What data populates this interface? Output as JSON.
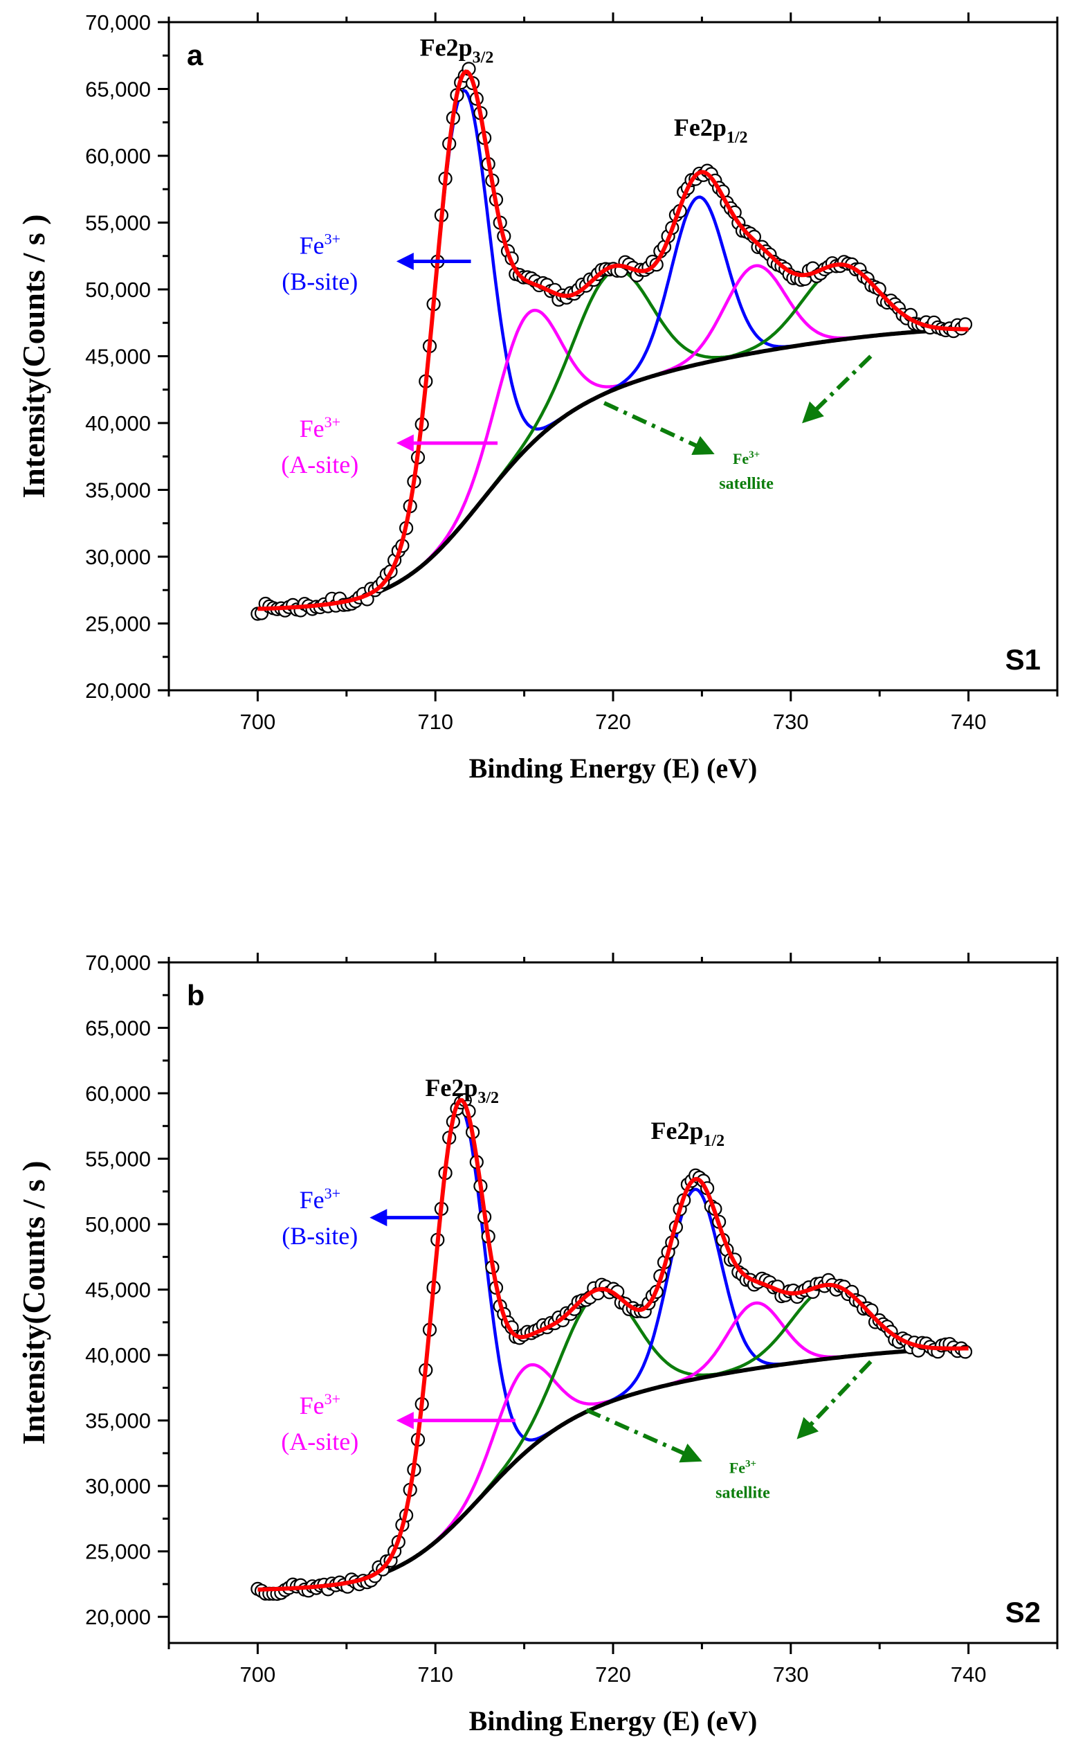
{
  "figure": {
    "description_free": true,
    "colors": {
      "data": "#000000",
      "envelope": "#ff0000",
      "b_site": "#0000ff",
      "a_site": "#ff00ff",
      "satellite": "#0b7d0b",
      "background": "#000000"
    }
  },
  "chart_data": [
    {
      "type": "line",
      "panel_label": "a",
      "sample_label": "S1",
      "xlabel": "Binding Energy (E) (eV)",
      "ylabel": "Intensity(Counts / s )",
      "xlim": [
        695,
        745
      ],
      "ylim": [
        20000,
        70000
      ],
      "x_ticks": [
        700,
        710,
        720,
        730,
        740
      ],
      "x_tick_labels": [
        "700",
        "710",
        "720",
        "730",
        "740"
      ],
      "y_ticks": [
        20000,
        25000,
        30000,
        35000,
        40000,
        45000,
        50000,
        55000,
        60000,
        65000,
        70000
      ],
      "y_tick_labels": [
        "20,000",
        "25,000",
        "30,000",
        "35,000",
        "40,000",
        "45,000",
        "50,000",
        "55,000",
        "60,000",
        "65,000",
        "70,000"
      ],
      "peak_labels": [
        {
          "main": "Fe2p",
          "sub": "3/2",
          "x": 711.2,
          "y": 67500
        },
        {
          "main": "Fe2p",
          "sub": "1/2",
          "x": 725.5,
          "y": 61500
        }
      ],
      "annotations": [
        {
          "id": "b_site",
          "ion": "Fe",
          "charge": "3+",
          "site": "(B-site)",
          "color": "b_site",
          "arrow_from": [
            712,
            52100
          ],
          "arrow_to": [
            708,
            52100
          ],
          "text_x": 703.5,
          "text_y": 50700
        },
        {
          "id": "a_site",
          "ion": "Fe",
          "charge": "3+",
          "site": "(A-site)",
          "color": "a_site",
          "arrow_from": [
            713.5,
            38500
          ],
          "arrow_to": [
            708,
            38500
          ],
          "text_x": 703.5,
          "text_y": 37000
        },
        {
          "id": "satellite",
          "ion": "Fe",
          "charge": "3+",
          "site": "satellite",
          "color": "satellite"
        }
      ],
      "satellite_arrows": [
        {
          "from": [
            719.5,
            41500
          ],
          "to": [
            725.5,
            37800
          ]
        },
        {
          "from": [
            734.5,
            45000
          ],
          "to": [
            730.8,
            40200
          ]
        }
      ],
      "satellite_text": {
        "x": 727.5,
        "y": 35500
      },
      "background": {
        "start": 26000,
        "end": 47000,
        "knee_center": 712,
        "knee_width": 2.5,
        "linear_slope": 170
      },
      "peaks": [
        {
          "name": "Fe3+ (B-site) 2p3/2",
          "color": "b_site",
          "center": 711.5,
          "amplitude": 32400,
          "fwhm": 3.6
        },
        {
          "name": "Fe3+ (A-site) 2p3/2",
          "color": "a_site",
          "center": 715.2,
          "amplitude": 10000,
          "fwhm": 4.2
        },
        {
          "name": "Fe3+ satellite 2p3/2",
          "color": "satellite",
          "center": 720.0,
          "amplitude": 8900,
          "fwhm": 5.0
        },
        {
          "name": "Fe3+ (B-site) 2p1/2",
          "color": "b_site",
          "center": 724.8,
          "amplitude": 12500,
          "fwhm": 3.6
        },
        {
          "name": "Fe3+ (A-site) 2p1/2",
          "color": "a_site",
          "center": 728.0,
          "amplitude": 6500,
          "fwhm": 4.0
        },
        {
          "name": "Fe3+ satellite 2p1/2",
          "color": "satellite",
          "center": 732.8,
          "amplitude": 5500,
          "fwhm": 5.0
        }
      ],
      "noise": {
        "amplitude": 380,
        "seed": 7
      }
    },
    {
      "type": "line",
      "panel_label": "b",
      "sample_label": "S2",
      "xlabel": "Binding Energy (E) (eV)",
      "ylabel": "Intensity(Counts / s )",
      "xlim": [
        695,
        745
      ],
      "ylim": [
        18000,
        70000
      ],
      "x_ticks": [
        700,
        710,
        720,
        730,
        740
      ],
      "x_tick_labels": [
        "700",
        "710",
        "720",
        "730",
        "740"
      ],
      "y_ticks": [
        20000,
        25000,
        30000,
        35000,
        40000,
        45000,
        50000,
        55000,
        60000,
        65000,
        70000
      ],
      "y_tick_labels": [
        "20,000",
        "25,000",
        "30,000",
        "35,000",
        "40,000",
        "45,000",
        "50,000",
        "55,000",
        "60,000",
        "65,000",
        "70,000"
      ],
      "peak_labels": [
        {
          "main": "Fe2p",
          "sub": "3/2",
          "x": 711.5,
          "y": 59800
        },
        {
          "main": "Fe2p",
          "sub": "1/2",
          "x": 724.2,
          "y": 56500
        }
      ],
      "annotations": [
        {
          "id": "b_site",
          "ion": "Fe",
          "charge": "3+",
          "site": "(B-site)",
          "color": "b_site",
          "arrow_from": [
            710.2,
            50500
          ],
          "arrow_to": [
            706.5,
            50500
          ],
          "text_x": 703.5,
          "text_y": 49200
        },
        {
          "id": "a_site",
          "ion": "Fe",
          "charge": "3+",
          "site": "(A-site)",
          "color": "a_site",
          "arrow_from": [
            714.5,
            35000
          ],
          "arrow_to": [
            708,
            35000
          ],
          "text_x": 703.5,
          "text_y": 33500
        },
        {
          "id": "satellite",
          "ion": "Fe",
          "charge": "3+",
          "site": "satellite",
          "color": "satellite"
        }
      ],
      "satellite_arrows": [
        {
          "from": [
            718.5,
            35800
          ],
          "to": [
            724.8,
            32000
          ]
        },
        {
          "from": [
            734.5,
            39500
          ],
          "to": [
            730.5,
            33800
          ]
        }
      ],
      "satellite_text": {
        "x": 727.3,
        "y": 29500
      },
      "background": {
        "start": 22000,
        "end": 40500,
        "knee_center": 712,
        "knee_width": 2.5,
        "linear_slope": 150
      },
      "peaks": [
        {
          "name": "Fe3+ (B-site) 2p3/2",
          "color": "b_site",
          "center": 711.3,
          "amplitude": 31500,
          "fwhm": 3.4
        },
        {
          "name": "Fe3+ (A-site) 2p3/2",
          "color": "a_site",
          "center": 715.0,
          "amplitude": 6500,
          "fwhm": 3.8
        },
        {
          "name": "Fe3+ satellite 2p3/2",
          "color": "satellite",
          "center": 719.2,
          "amplitude": 8700,
          "fwhm": 5.0
        },
        {
          "name": "Fe3+ (B-site) 2p1/2",
          "color": "b_site",
          "center": 724.6,
          "amplitude": 14500,
          "fwhm": 3.4
        },
        {
          "name": "Fe3+ (A-site) 2p1/2",
          "color": "a_site",
          "center": 728.0,
          "amplitude": 5000,
          "fwhm": 3.6
        },
        {
          "name": "Fe3+ satellite 2p1/2",
          "color": "satellite",
          "center": 732.2,
          "amplitude": 5500,
          "fwhm": 5.0
        }
      ],
      "noise": {
        "amplitude": 380,
        "seed": 13
      }
    }
  ]
}
